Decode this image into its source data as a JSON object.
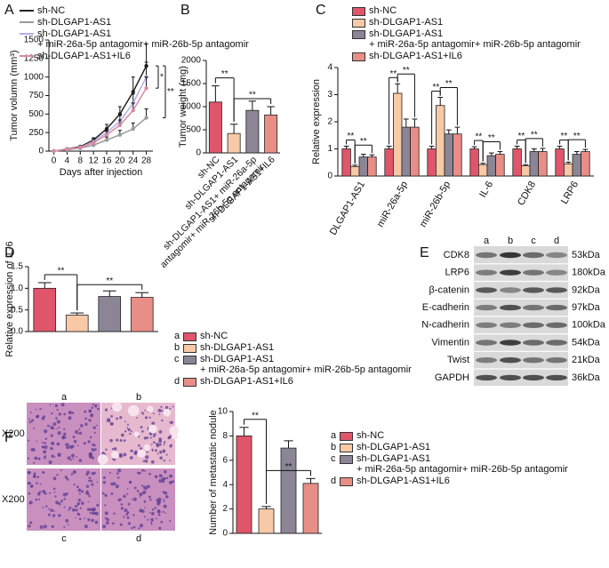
{
  "chart_data": [
    {
      "type": "line",
      "panel": "A",
      "y_label": "Tumor volumn (mm³)",
      "x_label": "Days after injection",
      "x": [
        0,
        4,
        8,
        12,
        16,
        20,
        24,
        28
      ],
      "xlim": [
        -1.5,
        30
      ],
      "xticks": [
        0,
        4,
        8,
        12,
        16,
        20,
        24,
        28
      ],
      "ylim": [
        0,
        1500
      ],
      "yticks": [
        0,
        250,
        500,
        750,
        1000,
        1250,
        1500
      ],
      "series": [
        {
          "name": "sh-NC",
          "color": "#222222",
          "values": [
            0,
            30,
            60,
            150,
            300,
            500,
            800,
            1150
          ],
          "errors": [
            0,
            5,
            10,
            30,
            60,
            100,
            200,
            300
          ]
        },
        {
          "name": "sh-DLGAP1-AS1",
          "color": "#9a9a9a",
          "values": [
            0,
            20,
            40,
            80,
            150,
            220,
            300,
            450
          ],
          "errors": [
            0,
            5,
            10,
            20,
            40,
            60,
            80,
            120
          ]
        },
        {
          "name": "sh-DLGAP1-AS1\n+ miR-26a-5p antagomir+ miR-26b-5p antagomir",
          "color": "#b3aee6",
          "values": [
            0,
            30,
            50,
            130,
            250,
            400,
            650,
            1000
          ],
          "errors": [
            0,
            5,
            10,
            25,
            50,
            80,
            120,
            200
          ]
        },
        {
          "name": "sh-DLGAP1-AS1+IL6",
          "color": "#d98aa2",
          "values": [
            0,
            25,
            50,
            110,
            220,
            350,
            550,
            850
          ],
          "errors": [
            0,
            5,
            10,
            20,
            50,
            70,
            100,
            150
          ]
        }
      ],
      "annotations": [
        "*",
        "**"
      ]
    },
    {
      "type": "bar",
      "panel": "B",
      "y_label": "Tumor weight (mg)",
      "legend": false,
      "categories": [
        "sh-NC",
        "sh-DLGAP1-AS1",
        "sh-DLGAP1-AS1+ miR-26a-5p\nantagomir+ miR-26b-5p antagomir",
        "sh-DLGAP1-AS1+IL6"
      ],
      "values": [
        1100,
        420,
        920,
        820
      ],
      "errors": [
        350,
        200,
        200,
        180
      ],
      "colors": [
        "#e0556a",
        "#f7c9a6",
        "#8b8595",
        "#e98d87"
      ],
      "ylim": [
        0,
        2000
      ],
      "yticks": [
        0,
        500,
        1000,
        1500,
        2000
      ],
      "annotations": [
        "**",
        "**"
      ]
    },
    {
      "type": "bar",
      "panel": "C",
      "y_label": "Relative expression",
      "categories": [
        "DLGAP1-AS1",
        "miR-26a-5p",
        "miR-26b-5p",
        "IL-6",
        "CDK8",
        "LRP6"
      ],
      "ylim": [
        0,
        4
      ],
      "yticks": [
        0,
        1,
        2,
        3,
        4
      ],
      "series": [
        {
          "name": "sh-NC",
          "color": "#e0556a",
          "values": [
            1,
            1,
            1,
            1,
            1,
            1
          ],
          "errors": [
            0.1,
            0.1,
            0.1,
            0.08,
            0.1,
            0.1
          ]
        },
        {
          "name": "sh-DLGAP1-AS1",
          "color": "#f7c9a6",
          "values": [
            0.35,
            3.05,
            2.6,
            0.42,
            0.38,
            0.45
          ],
          "errors": [
            0.05,
            0.35,
            0.3,
            0.05,
            0.04,
            0.06
          ]
        },
        {
          "name": "sh-DLGAP1-AS1\n+ miR-26a-5p antagomir+ miR-26b-5p antagomir",
          "color": "#8b8595",
          "values": [
            0.7,
            1.8,
            1.55,
            0.75,
            0.9,
            0.8
          ],
          "errors": [
            0.1,
            0.3,
            0.15,
            0.1,
            0.1,
            0.1
          ]
        },
        {
          "name": "sh-DLGAP1-AS1+IL6",
          "color": "#e98d87",
          "values": [
            0.7,
            1.8,
            1.55,
            0.8,
            0.9,
            0.9
          ],
          "errors": [
            0.08,
            0.3,
            0.25,
            0.1,
            0.12,
            0.08
          ]
        }
      ],
      "annotations": [
        "**",
        "**",
        "**",
        "**",
        "**",
        "**",
        "**",
        "**",
        "**",
        "**",
        "**",
        "**"
      ]
    },
    {
      "type": "bar",
      "panel": "D",
      "y_label": "Relative expression of IL-6",
      "legend": true,
      "categories": [
        "sh-NC",
        "sh-DLGAP1-AS1",
        "sh-DLGAP1-AS1\n+ miR-26a-5p antagomir+ miR-26b-5p antagomir",
        "sh-DLGAP1-AS1+IL6"
      ],
      "letters": [
        "a",
        "b",
        "c",
        "d"
      ],
      "values": [
        1.0,
        0.38,
        0.81,
        0.79
      ],
      "errors": [
        0.13,
        0.05,
        0.13,
        0.11
      ],
      "colors": [
        "#e0556a",
        "#f7c9a6",
        "#8b8595",
        "#e98d87"
      ],
      "ylim": [
        0,
        1.5
      ],
      "yticks": [
        {
          "value": 0,
          "label": "0.0"
        },
        0.5,
        {
          "value": 1,
          "label": "1.0"
        },
        1.5
      ],
      "annotations": [
        "**",
        "**"
      ]
    },
    {
      "type": "bar",
      "y_label": "Number of metastatic nodule",
      "legend": true,
      "categories": [
        "sh-NC",
        "sh-DLGAP1-AS1",
        "sh-DLGAP1-AS1\n+ miR-26a-5p antagomir+ miR-26b-5p antagomir",
        "sh-DLGAP1-AS1+IL6"
      ],
      "letters": [
        "a",
        "b",
        "c",
        "d"
      ],
      "values": [
        8,
        2,
        7,
        4.1
      ],
      "errors": [
        0.7,
        0.2,
        0.6,
        0.4
      ],
      "colors": [
        "#e0556a",
        "#f7c9a6",
        "#8b8595",
        "#e98d87"
      ],
      "ylim": [
        0,
        10
      ],
      "yticks": [
        0,
        2,
        4,
        6,
        8,
        10
      ],
      "annotations": [
        "**",
        "**"
      ]
    }
  ],
  "western_blot": {
    "panel": "E",
    "lanes": [
      "a",
      "b",
      "c",
      "d"
    ],
    "rows": [
      {
        "protein": "CDK8",
        "size": "53kDa"
      },
      {
        "protein": "LRP6",
        "size": "180kDa"
      },
      {
        "protein": "β-catenin",
        "size": "92kDa"
      },
      {
        "protein": "E-cadherin",
        "size": "97kDa"
      },
      {
        "protein": "N-cadherin",
        "size": "100kDa"
      },
      {
        "protein": "Vimentin",
        "size": "54kDa"
      },
      {
        "protein": "Twist",
        "size": "21kDa"
      },
      {
        "protein": "GAPDH",
        "size": "36kDa"
      }
    ]
  },
  "histology": {
    "panel": "F",
    "labels": [
      "a",
      "b",
      "c",
      "d"
    ],
    "magnification": [
      "X200",
      "X200"
    ]
  }
}
